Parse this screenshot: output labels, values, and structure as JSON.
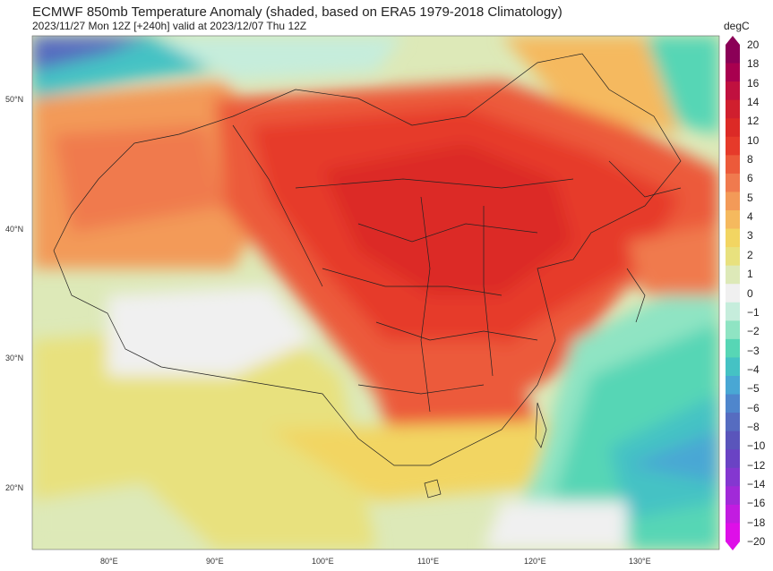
{
  "header": {
    "title": "ECMWF 850mb Temperature Anomaly (shaded, based on ERA5 1979-2018 Climatology)",
    "subtitle": "2023/11/27 Mon 12Z [+240h] valid at 2023/12/07 Thu 12Z"
  },
  "colorbar": {
    "unit": "degC",
    "levels": [
      "20",
      "18",
      "16",
      "14",
      "12",
      "10",
      "8",
      "6",
      "5",
      "4",
      "3",
      "2",
      "1",
      "0",
      "−1",
      "−2",
      "−3",
      "−4",
      "−5",
      "−6",
      "−8",
      "−10",
      "−12",
      "−14",
      "−16",
      "−18",
      "−20"
    ],
    "colors": [
      "#8b0057",
      "#a8004f",
      "#c0103f",
      "#d01f2e",
      "#dc2a26",
      "#e63a2a",
      "#ec5a3a",
      "#f07a4e",
      "#f39a58",
      "#f5b95e",
      "#f2d562",
      "#e8e17e",
      "#dde9b8",
      "#f0f0f0",
      "#c6eddc",
      "#8fe4c3",
      "#57d6b5",
      "#45c2c4",
      "#49a7d4",
      "#4f86cc",
      "#566cc0",
      "#5a55bb",
      "#6a43c4",
      "#8437d0",
      "#a12ad8",
      "#c21ce0",
      "#de0fe8"
    ]
  },
  "axes": {
    "lat_labels": [
      "50°N",
      "40°N",
      "30°N",
      "20°N"
    ],
    "lon_labels": [
      "80°E",
      "90°E",
      "100°E",
      "110°E",
      "120°E",
      "130°E"
    ]
  },
  "map_fields": {
    "region": "China and East Asia",
    "variable": "850mb temperature anomaly"
  }
}
